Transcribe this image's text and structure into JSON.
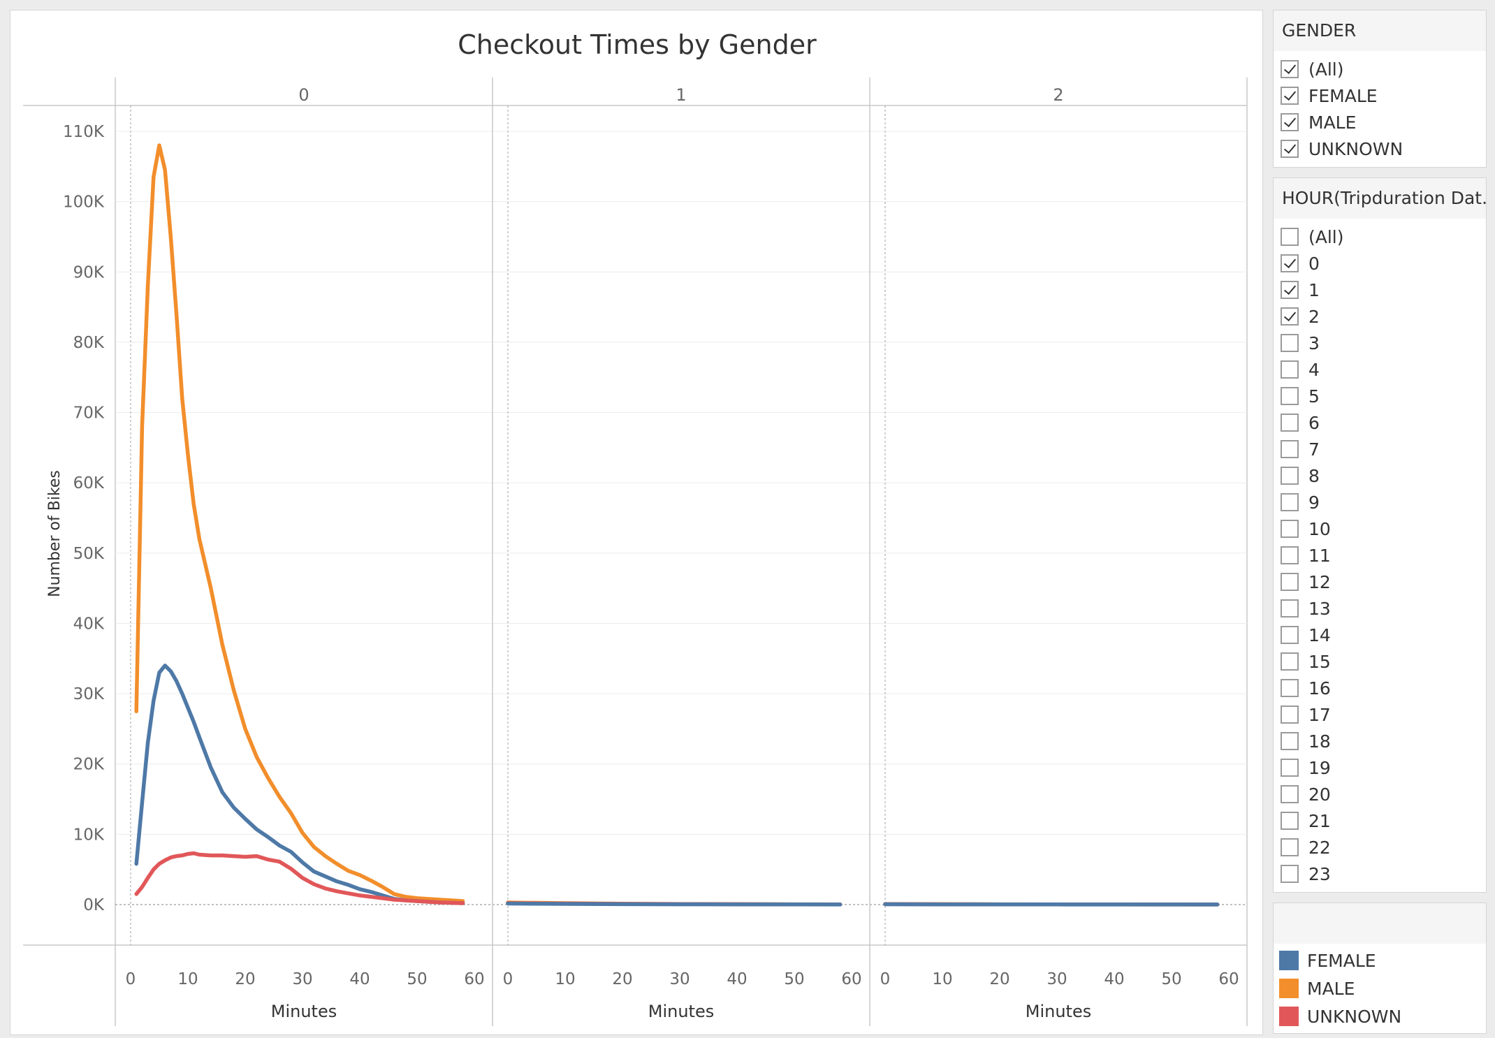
{
  "chart_data": {
    "type": "line",
    "title": "Checkout Times by Gender",
    "ylabel": "Number of Bikes",
    "xlabel": "Minutes",
    "ylim": [
      0,
      110000
    ],
    "yticks": [
      "0K",
      "10K",
      "20K",
      "30K",
      "40K",
      "50K",
      "60K",
      "70K",
      "80K",
      "90K",
      "100K",
      "110K"
    ],
    "xlim": [
      0,
      60
    ],
    "xticks": [
      "0",
      "10",
      "20",
      "30",
      "40",
      "50",
      "60"
    ],
    "grid": true,
    "panels": [
      {
        "header": "0",
        "series": [
          {
            "name": "MALE",
            "color": "#f28e2b",
            "x": [
              1,
              2,
              3,
              4,
              5,
              6,
              7,
              8,
              9,
              10,
              11,
              12,
              14,
              16,
              18,
              20,
              22,
              24,
              26,
              28,
              30,
              32,
              34,
              36,
              38,
              40,
              42,
              44,
              46,
              48,
              50,
              54,
              58
            ],
            "y": [
              27500,
              68000,
              88000,
              103500,
              108000,
              104500,
              95000,
              84000,
              72000,
              64000,
              57000,
              52000,
              45000,
              37000,
              30500,
              25000,
              21000,
              18000,
              15300,
              13000,
              10200,
              8200,
              6900,
              5800,
              4800,
              4200,
              3400,
              2500,
              1500,
              1100,
              900,
              700,
              500
            ]
          },
          {
            "name": "FEMALE",
            "color": "#4e79a7",
            "x": [
              1,
              2,
              3,
              4,
              5,
              6,
              7,
              8,
              9,
              10,
              11,
              12,
              14,
              16,
              18,
              20,
              22,
              24,
              26,
              28,
              30,
              32,
              34,
              36,
              38,
              40,
              42,
              44,
              46,
              48,
              50,
              54,
              58
            ],
            "y": [
              5800,
              14500,
              23000,
              29000,
              33000,
              34000,
              33200,
              31800,
              30000,
              28000,
              26000,
              23800,
              19500,
              16000,
              13800,
              12200,
              10700,
              9600,
              8400,
              7500,
              6000,
              4700,
              4000,
              3300,
              2800,
              2200,
              1800,
              1300,
              800,
              600,
              500,
              300,
              200
            ]
          },
          {
            "name": "UNKNOWN",
            "color": "#e15759",
            "x": [
              1,
              2,
              3,
              4,
              5,
              6,
              7,
              8,
              9,
              10,
              11,
              12,
              14,
              16,
              18,
              20,
              22,
              24,
              26,
              28,
              30,
              32,
              34,
              36,
              38,
              40,
              42,
              44,
              46,
              48,
              50,
              54,
              58
            ],
            "y": [
              1500,
              2500,
              3800,
              5000,
              5800,
              6300,
              6700,
              6900,
              7000,
              7200,
              7300,
              7100,
              7000,
              7000,
              6900,
              6800,
              6900,
              6400,
              6100,
              5100,
              3800,
              2900,
              2300,
              1900,
              1600,
              1300,
              1100,
              900,
              700,
              600,
              500,
              300,
              200
            ]
          }
        ]
      },
      {
        "header": "1",
        "series": [
          {
            "name": "MALE",
            "color": "#f28e2b",
            "x": [
              0,
              10,
              20,
              30,
              40,
              50,
              58
            ],
            "y": [
              300,
              200,
              120,
              80,
              60,
              40,
              30
            ]
          },
          {
            "name": "UNKNOWN",
            "color": "#e15759",
            "x": [
              0,
              10,
              20,
              30,
              40,
              50,
              58
            ],
            "y": [
              200,
              150,
              100,
              70,
              50,
              30,
              20
            ]
          },
          {
            "name": "FEMALE",
            "color": "#4e79a7",
            "x": [
              0,
              10,
              20,
              30,
              40,
              50,
              58
            ],
            "y": [
              150,
              100,
              60,
              40,
              30,
              20,
              10
            ]
          }
        ]
      },
      {
        "header": "2",
        "series": [
          {
            "name": "MALE",
            "color": "#f28e2b",
            "x": [
              0,
              10,
              20,
              30,
              40,
              50,
              58
            ],
            "y": [
              80,
              60,
              40,
              30,
              20,
              15,
              10
            ]
          },
          {
            "name": "UNKNOWN",
            "color": "#e15759",
            "x": [
              0,
              10,
              20,
              30,
              40,
              50,
              58
            ],
            "y": [
              60,
              40,
              30,
              20,
              15,
              10,
              5
            ]
          },
          {
            "name": "FEMALE",
            "color": "#4e79a7",
            "x": [
              0,
              10,
              20,
              30,
              40,
              50,
              58
            ],
            "y": [
              50,
              30,
              20,
              15,
              10,
              8,
              5
            ]
          }
        ]
      }
    ]
  },
  "filters": {
    "gender": {
      "title": "GENDER",
      "items": [
        {
          "label": "(All)",
          "checked": true
        },
        {
          "label": "FEMALE",
          "checked": true
        },
        {
          "label": "MALE",
          "checked": true
        },
        {
          "label": "UNKNOWN",
          "checked": true
        }
      ]
    },
    "hour": {
      "title": "HOUR(Tripduration Dat...",
      "items": [
        {
          "label": "(All)",
          "checked": false
        },
        {
          "label": "0",
          "checked": true
        },
        {
          "label": "1",
          "checked": true
        },
        {
          "label": "2",
          "checked": true
        },
        {
          "label": "3",
          "checked": false
        },
        {
          "label": "4",
          "checked": false
        },
        {
          "label": "5",
          "checked": false
        },
        {
          "label": "6",
          "checked": false
        },
        {
          "label": "7",
          "checked": false
        },
        {
          "label": "8",
          "checked": false
        },
        {
          "label": "9",
          "checked": false
        },
        {
          "label": "10",
          "checked": false
        },
        {
          "label": "11",
          "checked": false
        },
        {
          "label": "12",
          "checked": false
        },
        {
          "label": "13",
          "checked": false
        },
        {
          "label": "14",
          "checked": false
        },
        {
          "label": "15",
          "checked": false
        },
        {
          "label": "16",
          "checked": false
        },
        {
          "label": "17",
          "checked": false
        },
        {
          "label": "18",
          "checked": false
        },
        {
          "label": "19",
          "checked": false
        },
        {
          "label": "20",
          "checked": false
        },
        {
          "label": "21",
          "checked": false
        },
        {
          "label": "22",
          "checked": false
        },
        {
          "label": "23",
          "checked": false
        }
      ]
    }
  },
  "legend": {
    "items": [
      {
        "label": "FEMALE",
        "color": "#4e79a7"
      },
      {
        "label": "MALE",
        "color": "#f28e2b"
      },
      {
        "label": "UNKNOWN",
        "color": "#e15759"
      }
    ]
  }
}
